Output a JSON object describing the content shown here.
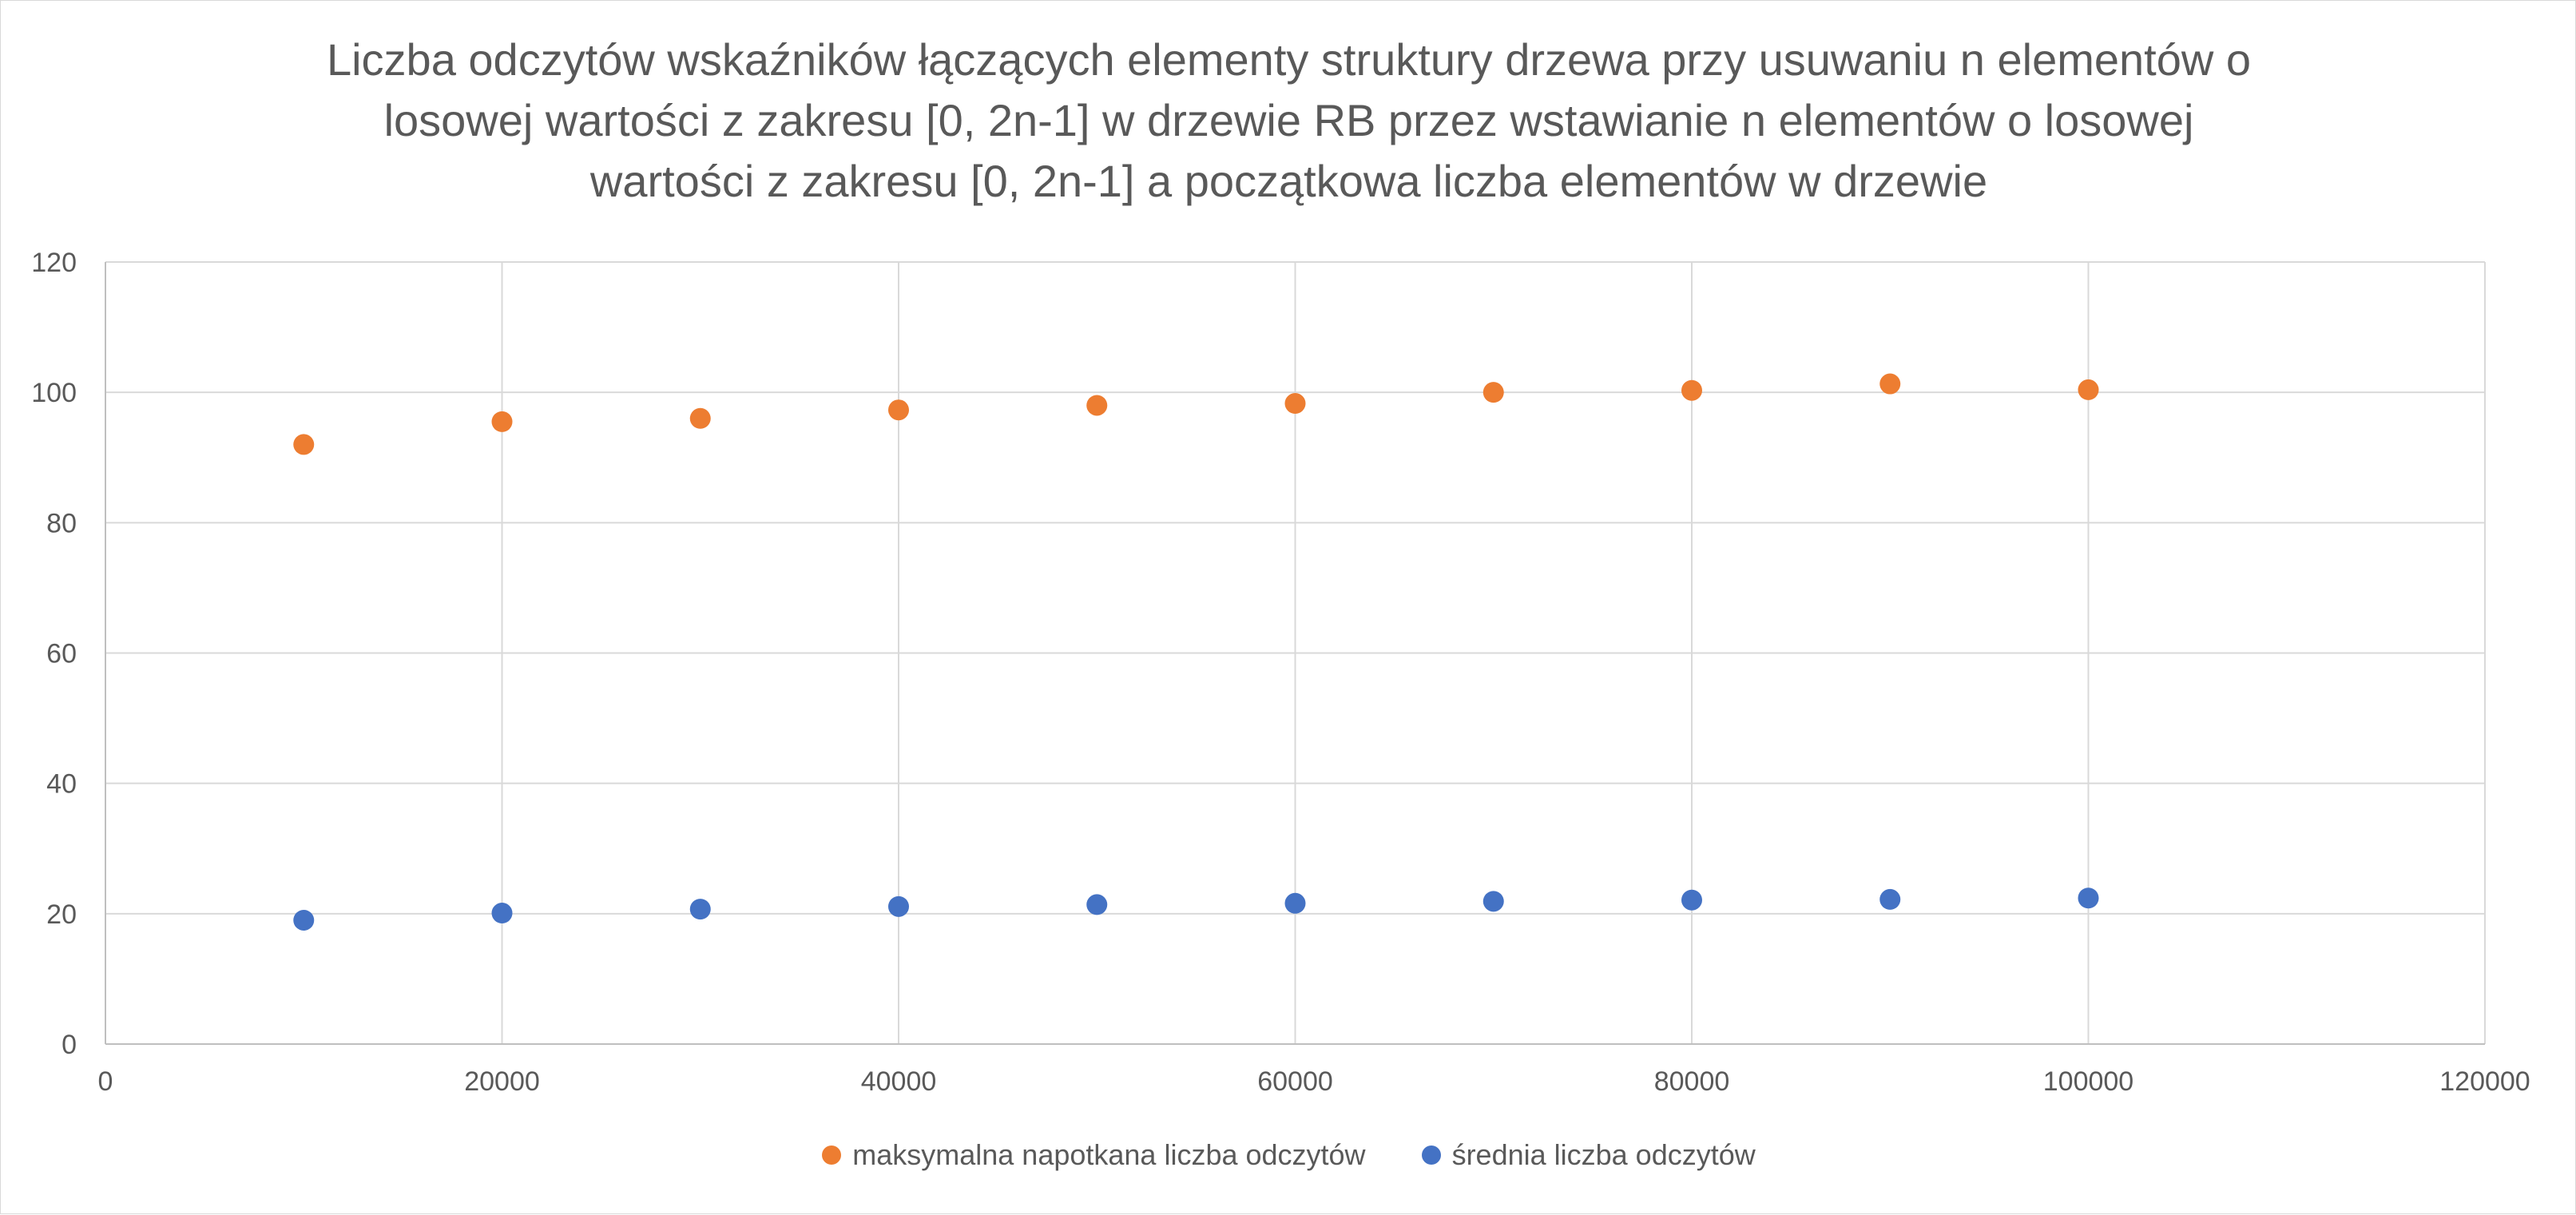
{
  "chart_data": {
    "type": "scatter",
    "title_lines": [
      "Liczba odczytów wskaźników łączących elementy struktury drzewa przy usuwaniu n elementów o",
      "losowej wartości z zakresu [0, 2n-1] w drzewie RB przez wstawianie n elementów o losowej",
      "wartości z zakresu [0, 2n-1] a początkowa liczba elementów w drzewie"
    ],
    "xlabel": "",
    "ylabel": "",
    "xlim": [
      0,
      120000
    ],
    "ylim": [
      0,
      120
    ],
    "x_ticks": [
      "0",
      "20000",
      "40000",
      "60000",
      "80000",
      "100000",
      "120000"
    ],
    "y_ticks": [
      "0",
      "20",
      "40",
      "60",
      "80",
      "100",
      "120"
    ],
    "grid": true,
    "legend_position": "bottom",
    "x": [
      10000,
      20000,
      30000,
      40000,
      50000,
      60000,
      70000,
      80000,
      90000,
      100000
    ],
    "series": [
      {
        "name": "maksymalna napotkana liczba odczytów",
        "color": "#ED7D31",
        "values": [
          92,
          95.5,
          96,
          97.3,
          98,
          98.3,
          100,
          100.3,
          101.3,
          100.4
        ]
      },
      {
        "name": "średnia liczba odczytów",
        "color": "#4472C4",
        "values": [
          19,
          20.1,
          20.7,
          21.1,
          21.4,
          21.6,
          21.9,
          22.1,
          22.2,
          22.4
        ]
      }
    ]
  }
}
